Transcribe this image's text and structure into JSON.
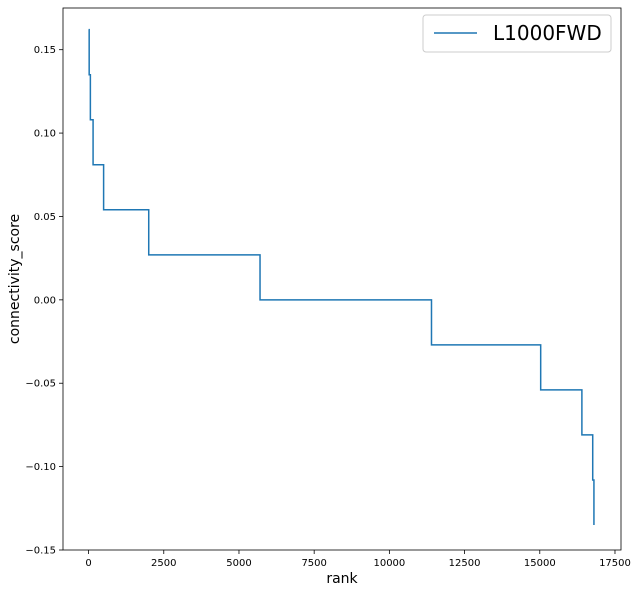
{
  "chart_data": {
    "type": "line",
    "title": "",
    "xlabel": "rank",
    "ylabel": "connectivity_score",
    "xlim": [
      -850,
      17700
    ],
    "ylim": [
      -0.15,
      0.175
    ],
    "x_ticks": [
      0,
      2500,
      5000,
      7500,
      10000,
      12500,
      15000,
      17500
    ],
    "x_tick_labels": [
      "0",
      "2500",
      "5000",
      "7500",
      "10000",
      "12500",
      "15000",
      "17500"
    ],
    "y_ticks": [
      -0.15,
      -0.1,
      -0.05,
      0.0,
      0.05,
      0.1,
      0.15
    ],
    "y_tick_labels": [
      "−0.15",
      "−0.10",
      "−0.05",
      "0.00",
      "0.05",
      "0.10",
      "0.15"
    ],
    "grid": false,
    "legend": {
      "position": "top-right",
      "entries": [
        "L1000FWD"
      ]
    },
    "series": [
      {
        "name": "L1000FWD",
        "color": "#1f77b4",
        "step": true,
        "points": [
          [
            0,
            0.162
          ],
          [
            20,
            0.135
          ],
          [
            60,
            0.108
          ],
          [
            150,
            0.081
          ],
          [
            500,
            0.054
          ],
          [
            2000,
            0.027
          ],
          [
            5700,
            0.0
          ],
          [
            11400,
            -0.027
          ],
          [
            15030,
            -0.054
          ],
          [
            16400,
            -0.081
          ],
          [
            16760,
            -0.108
          ],
          [
            16800,
            -0.135
          ]
        ]
      }
    ]
  }
}
